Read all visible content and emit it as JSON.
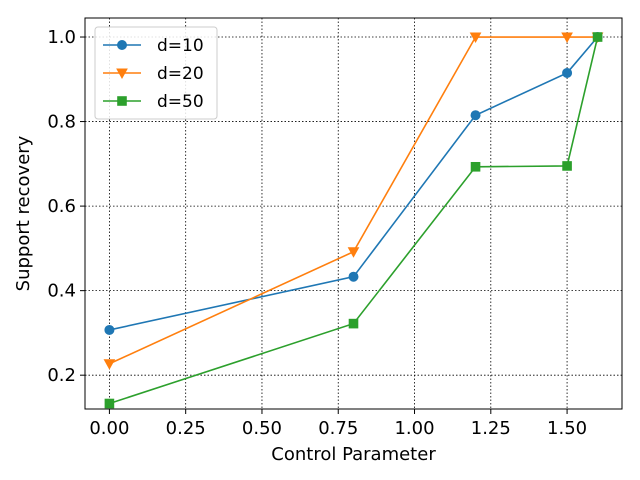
{
  "chart_data": {
    "type": "line",
    "title": "",
    "xlabel": "Control Parameter",
    "ylabel": "Support recovery",
    "x": [
      0.0,
      0.8,
      1.2,
      1.5,
      1.6
    ],
    "xlim": [
      -0.08,
      1.68
    ],
    "ylim": [
      0.12,
      1.045
    ],
    "xticks": [
      0.0,
      0.25,
      0.5,
      0.75,
      1.0,
      1.25,
      1.5
    ],
    "xtick_labels": [
      "0.00",
      "0.25",
      "0.50",
      "0.75",
      "1.00",
      "1.25",
      "1.50"
    ],
    "yticks": [
      0.2,
      0.4,
      0.6,
      0.8,
      1.0
    ],
    "ytick_labels": [
      "0.2",
      "0.4",
      "0.6",
      "0.8",
      "1.0"
    ],
    "grid": true,
    "legend_position": "top-left",
    "series": [
      {
        "name": "d=10",
        "values": [
          0.307,
          0.433,
          0.815,
          0.915,
          1.0
        ],
        "color": "#1f77b4",
        "marker": "circle"
      },
      {
        "name": "d=20",
        "values": [
          0.227,
          0.492,
          1.0,
          1.0,
          1.0
        ],
        "color": "#ff7f0e",
        "marker": "triangle-down"
      },
      {
        "name": "d=50",
        "values": [
          0.133,
          0.322,
          0.693,
          0.695,
          1.0
        ],
        "color": "#2ca02c",
        "marker": "square"
      }
    ]
  }
}
